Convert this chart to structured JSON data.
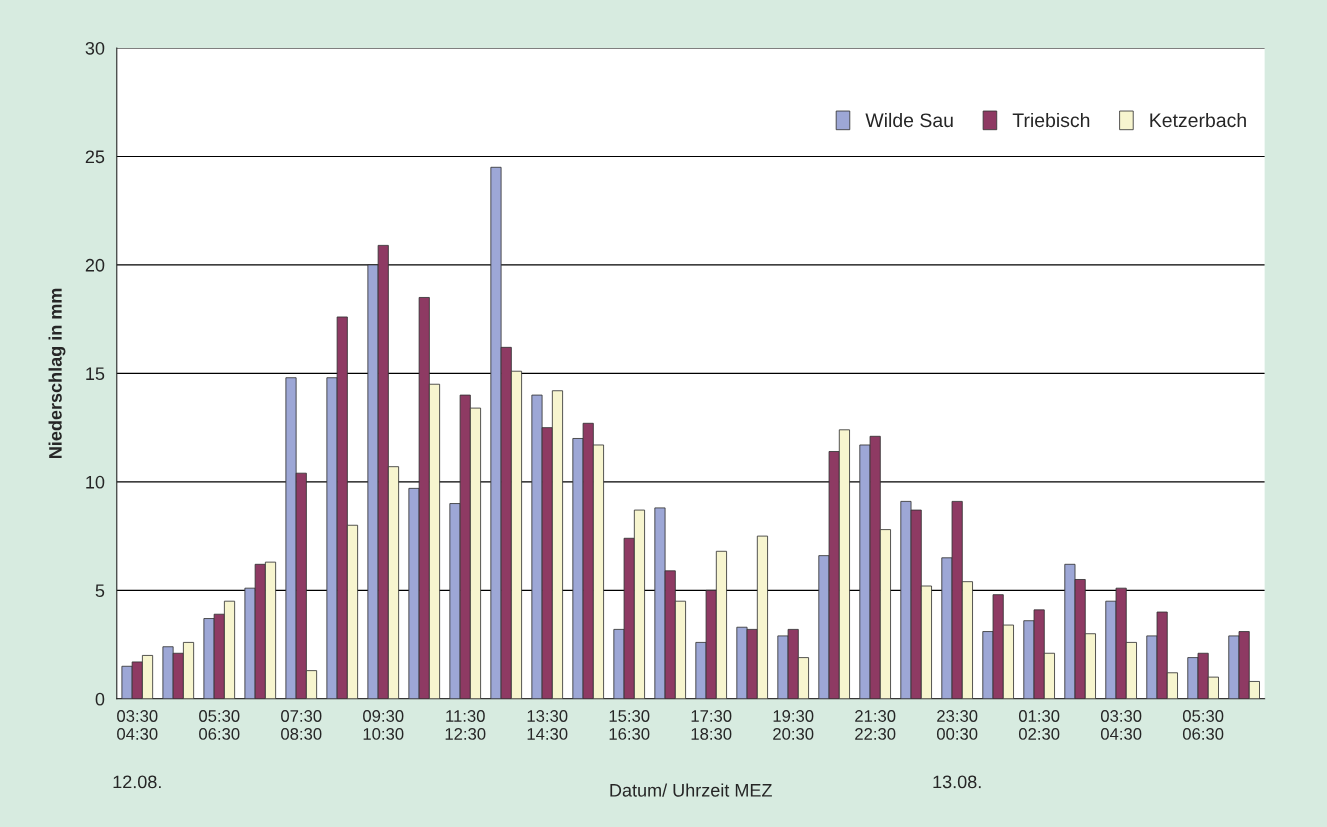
{
  "chart_data": {
    "type": "bar",
    "ylabel": "Niederschlag in mm",
    "xlabel": "Datum/ Uhrzeit MEZ",
    "categories": [
      "03:30\n04:30",
      null,
      "05:30\n06:30",
      null,
      "07:30\n08:30",
      null,
      "09:30\n10:30",
      null,
      "11:30\n12:30",
      null,
      "13:30\n14:30",
      null,
      "15:30\n16:30",
      null,
      "17:30\n18:30",
      null,
      "19:30\n20:30",
      null,
      "21:30\n22:30",
      null,
      "23:30\n00:30",
      null,
      "01:30\n02:30",
      null,
      "03:30\n04:30",
      null,
      "05:30\n06:30",
      null
    ],
    "series": [
      {
        "name": "Wilde Sau",
        "color": "#9da7d6",
        "values": [
          1.5,
          2.4,
          3.7,
          5.1,
          14.8,
          14.8,
          20.0,
          9.7,
          9.0,
          24.5,
          14.0,
          12.0,
          3.2,
          8.8,
          2.6,
          3.3,
          2.9,
          6.6,
          11.7,
          9.1,
          6.5,
          3.1,
          3.6,
          6.2,
          4.5,
          2.9,
          1.9,
          2.9
        ]
      },
      {
        "name": "Triebisch",
        "color": "#8e3a63",
        "values": [
          1.7,
          2.1,
          3.9,
          6.2,
          10.4,
          17.6,
          20.9,
          18.5,
          14.0,
          16.2,
          12.5,
          12.7,
          7.4,
          5.9,
          5.0,
          3.2,
          3.2,
          11.4,
          12.1,
          8.7,
          9.1,
          4.8,
          4.1,
          5.5,
          5.1,
          4.0,
          2.1,
          3.1
        ]
      },
      {
        "name": "Ketzerbach",
        "color": "#f7f5cf",
        "values": [
          2.0,
          2.6,
          4.5,
          6.3,
          1.3,
          8.0,
          10.7,
          14.5,
          13.4,
          15.1,
          14.2,
          11.7,
          8.7,
          4.5,
          6.8,
          7.5,
          1.9,
          12.4,
          7.8,
          5.2,
          5.4,
          3.4,
          2.1,
          3.0,
          2.6,
          1.2,
          1.0,
          0.8
        ]
      }
    ],
    "ylim": [
      0,
      30
    ],
    "yticks": [
      0,
      5,
      10,
      15,
      20,
      25,
      30
    ],
    "grid": "y",
    "legend": "top right",
    "annotations": [
      "12.08.",
      "13.08."
    ]
  }
}
